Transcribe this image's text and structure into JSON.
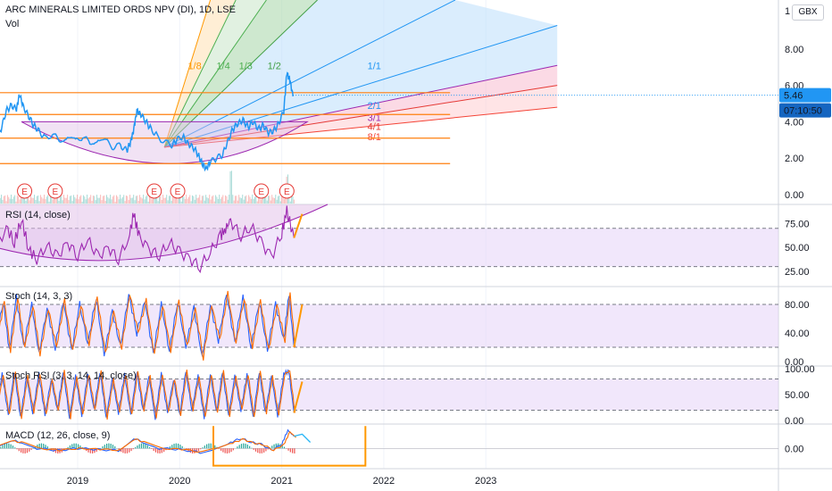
{
  "header": {
    "title": "ARC MINERALS LIMITED ORDS NPV (DI), 1D, LSE",
    "vol_label": "Vol"
  },
  "currency_button": "GBX",
  "price_badges": {
    "last": "5.46",
    "countdown": "07:10:50"
  },
  "chart_data": {
    "type": "line",
    "x_ticks": [
      "2019",
      "2020",
      "2021",
      "2022",
      "2023"
    ],
    "price_axis": {
      "ticks": [
        "8.00",
        "6.00",
        "4.00",
        "2.00",
        "0.00"
      ],
      "top_partial": "1",
      "ylim": [
        -0.5,
        10.7
      ]
    },
    "price_series": [
      [
        2018.2,
        3.1
      ],
      [
        2018.25,
        3.6
      ],
      [
        2018.3,
        4.6
      ],
      [
        2018.35,
        4.9
      ],
      [
        2018.4,
        4.7
      ],
      [
        2018.43,
        5.5
      ],
      [
        2018.47,
        4.8
      ],
      [
        2018.52,
        4.3
      ],
      [
        2018.57,
        3.8
      ],
      [
        2018.62,
        3.5
      ],
      [
        2018.68,
        3.1
      ],
      [
        2018.75,
        3.3
      ],
      [
        2018.82,
        3.0
      ],
      [
        2018.9,
        3.2
      ],
      [
        2018.98,
        2.9
      ],
      [
        2019.05,
        3.2
      ],
      [
        2019.12,
        2.8
      ],
      [
        2019.2,
        3.1
      ],
      [
        2019.28,
        2.9
      ],
      [
        2019.35,
        2.6
      ],
      [
        2019.42,
        2.7
      ],
      [
        2019.48,
        2.4
      ],
      [
        2019.52,
        2.9
      ],
      [
        2019.55,
        3.6
      ],
      [
        2019.58,
        4.6
      ],
      [
        2019.62,
        4.4
      ],
      [
        2019.67,
        4.0
      ],
      [
        2019.72,
        3.6
      ],
      [
        2019.78,
        3.2
      ],
      [
        2019.85,
        2.9
      ],
      [
        2019.92,
        2.7
      ],
      [
        2019.97,
        3.0
      ],
      [
        2020.03,
        3.2
      ],
      [
        2020.08,
        2.8
      ],
      [
        2020.13,
        2.6
      ],
      [
        2020.18,
        2.2
      ],
      [
        2020.22,
        1.7
      ],
      [
        2020.26,
        1.4
      ],
      [
        2020.3,
        1.8
      ],
      [
        2020.36,
        2.0
      ],
      [
        2020.42,
        2.2
      ],
      [
        2020.47,
        2.9
      ],
      [
        2020.52,
        3.6
      ],
      [
        2020.57,
        3.9
      ],
      [
        2020.62,
        4.1
      ],
      [
        2020.67,
        3.7
      ],
      [
        2020.72,
        4.0
      ],
      [
        2020.77,
        3.6
      ],
      [
        2020.82,
        3.8
      ],
      [
        2020.87,
        3.4
      ],
      [
        2020.92,
        3.5
      ],
      [
        2020.97,
        3.9
      ],
      [
        2021.02,
        4.6
      ],
      [
        2021.05,
        6.7
      ],
      [
        2021.08,
        6.3
      ],
      [
        2021.11,
        5.4
      ]
    ],
    "horizontal_levels": [
      5.6,
      4.4,
      3.1,
      1.7
    ],
    "fan_labels": [
      "1/8",
      "1/4",
      "1/3",
      "1/2",
      "1/1",
      "2/1",
      "3/1",
      "4/1",
      "8/1"
    ],
    "earnings_markers": [
      "E",
      "E",
      "E",
      "E",
      "E",
      "E"
    ],
    "indicators": [
      {
        "title": "RSI (14, close)",
        "ticks": [
          "75.00",
          "50.00",
          "25.00"
        ],
        "bands": [
          70,
          30
        ],
        "ylim": [
          10,
          95
        ],
        "series": [
          [
            2018.2,
            45
          ],
          [
            2018.3,
            72
          ],
          [
            2018.38,
            55
          ],
          [
            2018.45,
            80
          ],
          [
            2018.52,
            48
          ],
          [
            2018.6,
            38
          ],
          [
            2018.7,
            52
          ],
          [
            2018.8,
            40
          ],
          [
            2018.9,
            55
          ],
          [
            2019.0,
            42
          ],
          [
            2019.1,
            58
          ],
          [
            2019.2,
            40
          ],
          [
            2019.3,
            50
          ],
          [
            2019.4,
            38
          ],
          [
            2019.5,
            60
          ],
          [
            2019.55,
            85
          ],
          [
            2019.6,
            62
          ],
          [
            2019.7,
            48
          ],
          [
            2019.8,
            42
          ],
          [
            2019.9,
            55
          ],
          [
            2020.0,
            45
          ],
          [
            2020.1,
            38
          ],
          [
            2020.2,
            30
          ],
          [
            2020.3,
            45
          ],
          [
            2020.4,
            62
          ],
          [
            2020.45,
            70
          ],
          [
            2020.5,
            78
          ],
          [
            2020.6,
            62
          ],
          [
            2020.7,
            72
          ],
          [
            2020.8,
            55
          ],
          [
            2020.9,
            40
          ],
          [
            2021.0,
            65
          ],
          [
            2021.05,
            88
          ],
          [
            2021.12,
            60
          ]
        ],
        "projection": [
          [
            2021.12,
            60
          ],
          [
            2021.2,
            85
          ]
        ]
      },
      {
        "title": "Stoch (14, 3, 3)",
        "ticks": [
          "80.00",
          "40.00",
          "0.00"
        ],
        "bands": [
          80,
          20
        ],
        "ylim": [
          -5,
          105
        ],
        "series": [
          [
            2018.2,
            30
          ],
          [
            2018.27,
            85
          ],
          [
            2018.33,
            15
          ],
          [
            2018.4,
            90
          ],
          [
            2018.47,
            20
          ],
          [
            2018.55,
            80
          ],
          [
            2018.62,
            10
          ],
          [
            2018.7,
            75
          ],
          [
            2018.78,
            20
          ],
          [
            2018.86,
            85
          ],
          [
            2018.94,
            15
          ],
          [
            2019.02,
            80
          ],
          [
            2019.1,
            25
          ],
          [
            2019.18,
            90
          ],
          [
            2019.26,
            10
          ],
          [
            2019.34,
            70
          ],
          [
            2019.42,
            20
          ],
          [
            2019.5,
            95
          ],
          [
            2019.58,
            40
          ],
          [
            2019.66,
            85
          ],
          [
            2019.74,
            10
          ],
          [
            2019.82,
            80
          ],
          [
            2019.9,
            15
          ],
          [
            2019.98,
            85
          ],
          [
            2020.06,
            20
          ],
          [
            2020.14,
            75
          ],
          [
            2020.22,
            5
          ],
          [
            2020.3,
            80
          ],
          [
            2020.38,
            30
          ],
          [
            2020.46,
            95
          ],
          [
            2020.54,
            25
          ],
          [
            2020.62,
            90
          ],
          [
            2020.7,
            20
          ],
          [
            2020.78,
            85
          ],
          [
            2020.86,
            15
          ],
          [
            2020.94,
            80
          ],
          [
            2021.02,
            30
          ],
          [
            2021.07,
            95
          ],
          [
            2021.12,
            20
          ]
        ],
        "projection": [
          [
            2021.12,
            20
          ],
          [
            2021.2,
            80
          ]
        ]
      },
      {
        "title": "Stoch RSI (3, 3, 14, 14, close)",
        "ticks": [
          "100.00",
          "50.00",
          "0.00"
        ],
        "bands": [
          80,
          20
        ],
        "ylim": [
          -5,
          105
        ],
        "series": [
          [
            2018.2,
            20
          ],
          [
            2018.26,
            90
          ],
          [
            2018.32,
            10
          ],
          [
            2018.38,
            95
          ],
          [
            2018.44,
            5
          ],
          [
            2018.5,
            85
          ],
          [
            2018.56,
            15
          ],
          [
            2018.62,
            90
          ],
          [
            2018.68,
            10
          ],
          [
            2018.74,
            80
          ],
          [
            2018.8,
            20
          ],
          [
            2018.86,
            95
          ],
          [
            2018.92,
            5
          ],
          [
            2018.98,
            85
          ],
          [
            2019.04,
            10
          ],
          [
            2019.1,
            90
          ],
          [
            2019.16,
            20
          ],
          [
            2019.22,
            95
          ],
          [
            2019.28,
            5
          ],
          [
            2019.34,
            80
          ],
          [
            2019.4,
            15
          ],
          [
            2019.46,
            90
          ],
          [
            2019.52,
            10
          ],
          [
            2019.58,
            95
          ],
          [
            2019.64,
            20
          ],
          [
            2019.7,
            85
          ],
          [
            2019.76,
            5
          ],
          [
            2019.82,
            90
          ],
          [
            2019.88,
            15
          ],
          [
            2019.94,
            80
          ],
          [
            2020.0,
            10
          ],
          [
            2020.06,
            95
          ],
          [
            2020.12,
            20
          ],
          [
            2020.18,
            85
          ],
          [
            2020.24,
            5
          ],
          [
            2020.3,
            90
          ],
          [
            2020.36,
            15
          ],
          [
            2020.42,
            95
          ],
          [
            2020.48,
            10
          ],
          [
            2020.54,
            85
          ],
          [
            2020.6,
            20
          ],
          [
            2020.66,
            90
          ],
          [
            2020.72,
            5
          ],
          [
            2020.78,
            95
          ],
          [
            2020.84,
            15
          ],
          [
            2020.9,
            85
          ],
          [
            2020.96,
            10
          ],
          [
            2021.02,
            90
          ],
          [
            2021.07,
            95
          ],
          [
            2021.12,
            15
          ]
        ],
        "projection": [
          [
            2021.12,
            15
          ],
          [
            2021.2,
            75
          ]
        ]
      },
      {
        "title": "MACD (12, 26, close, 9)",
        "ticks": [
          "0.00"
        ],
        "ylim": [
          -1,
          1.2
        ],
        "series": [
          [
            2018.2,
            0.1
          ],
          [
            2018.35,
            0.4
          ],
          [
            2018.45,
            0.3
          ],
          [
            2018.6,
            0.0
          ],
          [
            2018.8,
            -0.1
          ],
          [
            2019.0,
            0.0
          ],
          [
            2019.2,
            -0.05
          ],
          [
            2019.4,
            -0.1
          ],
          [
            2019.55,
            0.5
          ],
          [
            2019.65,
            0.3
          ],
          [
            2019.8,
            0.0
          ],
          [
            2020.0,
            -0.05
          ],
          [
            2020.2,
            -0.2
          ],
          [
            2020.35,
            0.0
          ],
          [
            2020.5,
            0.3
          ],
          [
            2020.6,
            0.5
          ],
          [
            2020.7,
            0.3
          ],
          [
            2020.8,
            0.2
          ],
          [
            2020.9,
            -0.1
          ],
          [
            2021.0,
            0.2
          ],
          [
            2021.06,
            0.9
          ],
          [
            2021.12,
            0.6
          ]
        ],
        "projection": [
          [
            2021.12,
            0.6
          ],
          [
            2021.2,
            0.7
          ],
          [
            2021.28,
            0.3
          ]
        ]
      }
    ]
  },
  "colors": {
    "price": "#2196f3",
    "rsi": "#9c27b0",
    "stoch_k": "#2962ff",
    "stoch_d": "#ff6d00",
    "orange": "#ff9800",
    "level_line": "#ff7f0e",
    "band_fill": "#e6d4f7",
    "arc": "#9c27b0",
    "fan_green": "#4caf50",
    "fan_blue": "#2196f3",
    "fan_red": "#f44336",
    "fan_purple": "#9c27b0",
    "badge_price": "#2196f3",
    "badge_time": "#1565c0",
    "earnings": "#e53935"
  }
}
